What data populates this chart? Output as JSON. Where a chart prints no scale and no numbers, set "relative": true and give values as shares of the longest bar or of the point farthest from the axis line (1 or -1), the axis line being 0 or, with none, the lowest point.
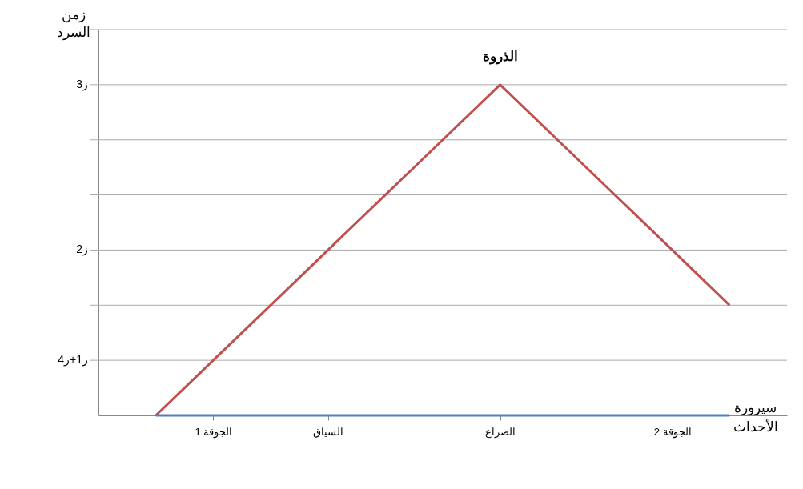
{
  "chart_data": {
    "type": "line",
    "relative": true,
    "xlabel": "سيرورة الأحداث",
    "ylabel": "زمن السرد",
    "annotations": [
      {
        "text": "الذروة",
        "x": "الصراع",
        "y": 1
      }
    ],
    "categories": [
      null,
      "الجوقة 1",
      null,
      "السياق",
      null,
      null,
      "الصراع",
      null,
      null,
      "الجوقة 2",
      null
    ],
    "series": [
      {
        "color": "#c0504d",
        "values": [
          0,
          0.1667,
          0.3333,
          0.5,
          0.6667,
          0.8333,
          1,
          0.8333,
          0.6667,
          0.5,
          0.3333
        ]
      },
      {
        "color": "#4f81bd",
        "values": [
          0,
          0,
          0,
          0,
          0,
          0,
          0,
          0,
          0,
          0,
          0
        ]
      }
    ],
    "ref_lines": [
      {
        "axis": "y",
        "value": 0.1667,
        "label": "ز1+ز4"
      },
      {
        "axis": "y",
        "value": 0.3333
      },
      {
        "axis": "y",
        "value": 0.5,
        "label": "ز2"
      },
      {
        "axis": "y",
        "value": 0.6667
      },
      {
        "axis": "y",
        "value": 0.8333
      },
      {
        "axis": "y",
        "value": 1,
        "label": "ز3"
      },
      {
        "axis": "y",
        "value": 1.1667
      }
    ],
    "legend": false,
    "marker": "none",
    "line_style": "solid"
  }
}
